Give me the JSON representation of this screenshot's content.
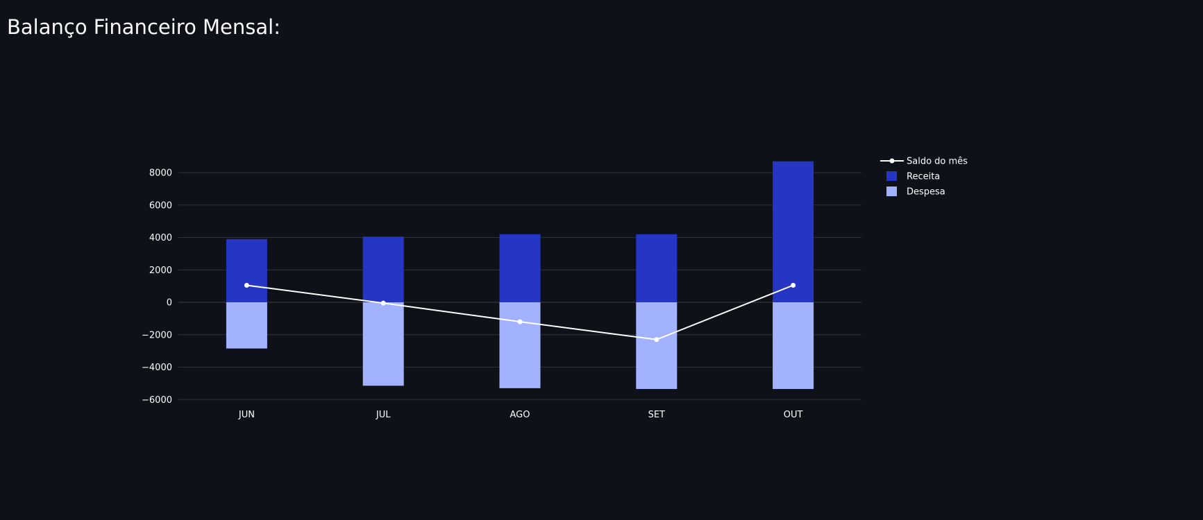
{
  "page": {
    "title": "Balanço Financeiro Mensal:"
  },
  "colors": {
    "background": "#0e1117",
    "grid": "#2e323c",
    "receita": "#2636c4",
    "despesa": "#a3b2ff",
    "saldo": "#ffffff",
    "text": "#ffffff"
  },
  "chart_data": {
    "type": "bar",
    "barmode": "relative",
    "categories": [
      "JUN",
      "JUL",
      "AGO",
      "SET",
      "OUT"
    ],
    "series": [
      {
        "name": "Receita",
        "type": "bar",
        "color": "#2636c4",
        "values": [
          3900,
          4050,
          4200,
          4200,
          8700
        ]
      },
      {
        "name": "Despesa",
        "type": "bar",
        "color": "#a3b2ff",
        "values": [
          -2850,
          -5150,
          -5300,
          -5350,
          -5350
        ]
      },
      {
        "name": "Saldo do mês",
        "type": "line",
        "color": "#ffffff",
        "values": [
          1050,
          -50,
          -1200,
          -2300,
          1050
        ]
      }
    ],
    "xlabel": "",
    "ylabel": "",
    "ylim": [
      -6000,
      9000
    ],
    "yticks": [
      -6000,
      -4000,
      -2000,
      0,
      2000,
      4000,
      6000,
      8000
    ],
    "ytick_labels": [
      "−6000",
      "−4000",
      "−2000",
      "0",
      "2000",
      "4000",
      "6000",
      "8000"
    ],
    "grid": true,
    "legend": {
      "placement": "top-right",
      "entries": [
        "Saldo do mês",
        "Receita",
        "Despesa"
      ]
    }
  }
}
